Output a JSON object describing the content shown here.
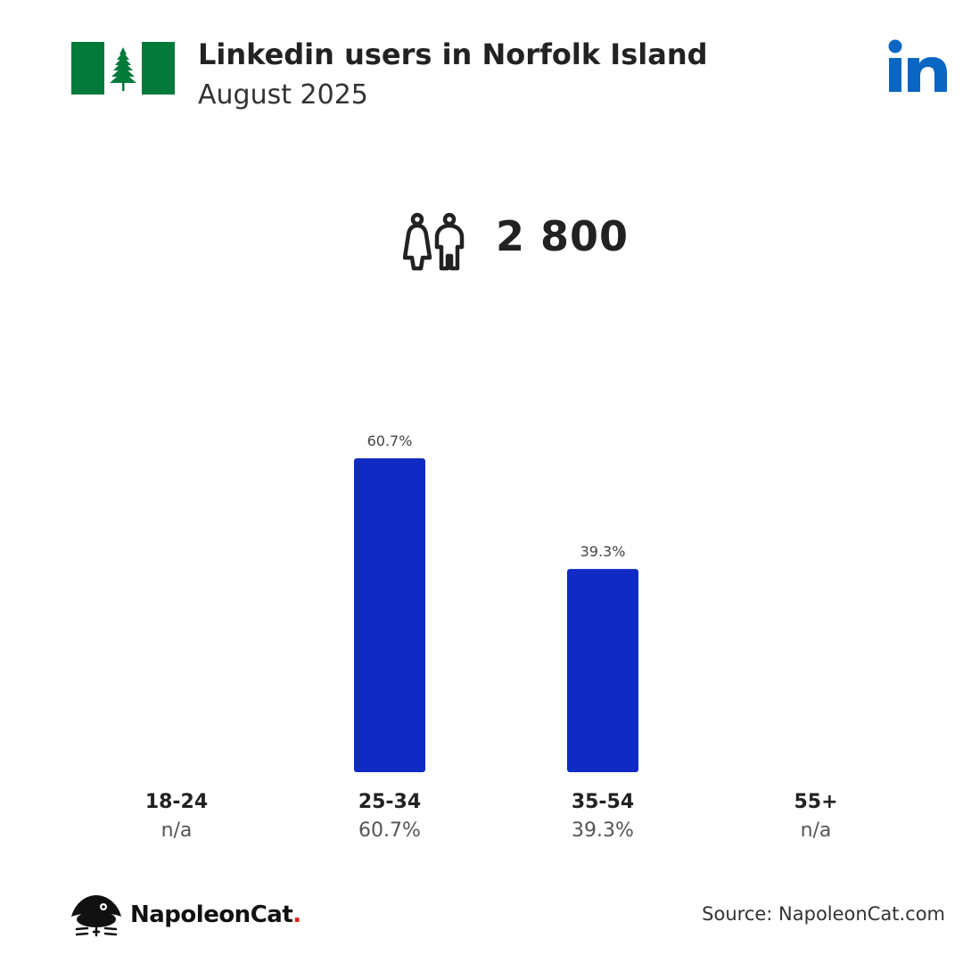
{
  "header": {
    "title": "Linkedin users in Norfolk Island",
    "subtitle": "August 2025"
  },
  "summary": {
    "total_users": "2 800"
  },
  "colors": {
    "bar": "#0f2bc4",
    "linkedin_blue": "#0a66c2",
    "flag_green": "#047a3a",
    "brand_dot": "#e0201c"
  },
  "icons": {
    "flag": "norfolk-island-flag-icon",
    "social": "linkedin-logo-icon",
    "users": "male-female-users-icon",
    "brand": "napoleoncat-logo-icon"
  },
  "chart_data": {
    "type": "bar",
    "categories": [
      "18-24",
      "25-34",
      "35-54",
      "55+"
    ],
    "values": [
      null,
      60.7,
      39.3,
      null
    ],
    "value_labels": [
      "n/a",
      "60.7%",
      "39.3%",
      "n/a"
    ],
    "bar_labels": [
      "",
      "60.7%",
      "39.3%",
      ""
    ],
    "unit": "%",
    "ylim": [
      0,
      60.7
    ],
    "grid": false,
    "legend": "none"
  },
  "footer": {
    "brand_name": "NapoleonCat",
    "brand_dot": ".",
    "source": "Source: NapoleonCat.com"
  }
}
